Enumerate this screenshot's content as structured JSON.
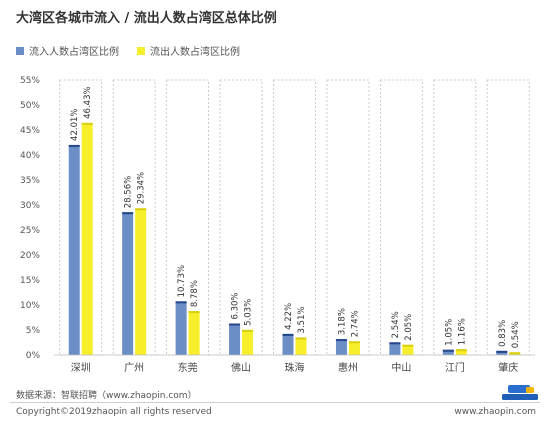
{
  "title": "大湾区各城市流入 / 流出人数占湾区总体比例",
  "source": "数据来源：智联招聘（www.zhaopin.com）",
  "copyright": "Copyright©2019zhaopin all rights reserved",
  "website": "www.zhaopin.com",
  "logo_icon": "zhaopin-logo-icon",
  "chart_data": {
    "type": "bar",
    "categories": [
      "深圳",
      "广州",
      "东莞",
      "佛山",
      "珠海",
      "惠州",
      "中山",
      "江门",
      "肇庆"
    ],
    "series": [
      {
        "name": "流入人数占湾区比例",
        "color": "#6b8ec7",
        "values": [
          42.01,
          28.56,
          10.73,
          6.3,
          4.22,
          3.18,
          2.54,
          1.05,
          0.83
        ],
        "labels": [
          "42.01%",
          "28.56%",
          "10.73%",
          "6.30%",
          "4.22%",
          "3.18%",
          "2.54%",
          "1.05%",
          "0.83%"
        ]
      },
      {
        "name": "流出人数占湾区比例",
        "color": "#f7ef2a",
        "values": [
          46.43,
          29.34,
          8.78,
          5.03,
          3.51,
          2.74,
          2.05,
          1.16,
          0.54
        ],
        "labels": [
          "46.43%",
          "29.34%",
          "8.78%",
          "5.03%",
          "3.51%",
          "2.74%",
          "2.05%",
          "1.16%",
          "0.54%"
        ]
      }
    ],
    "ylim": [
      0,
      55
    ],
    "yticks": [
      "0%",
      "5%",
      "10%",
      "15%",
      "20%",
      "25%",
      "30%",
      "35%",
      "40%",
      "45%",
      "50%",
      "55%"
    ],
    "ytick_values": [
      0,
      5,
      10,
      15,
      20,
      25,
      30,
      35,
      40,
      45,
      50,
      55
    ],
    "legend_position": "top-left",
    "grid": false,
    "background_columns": true
  }
}
